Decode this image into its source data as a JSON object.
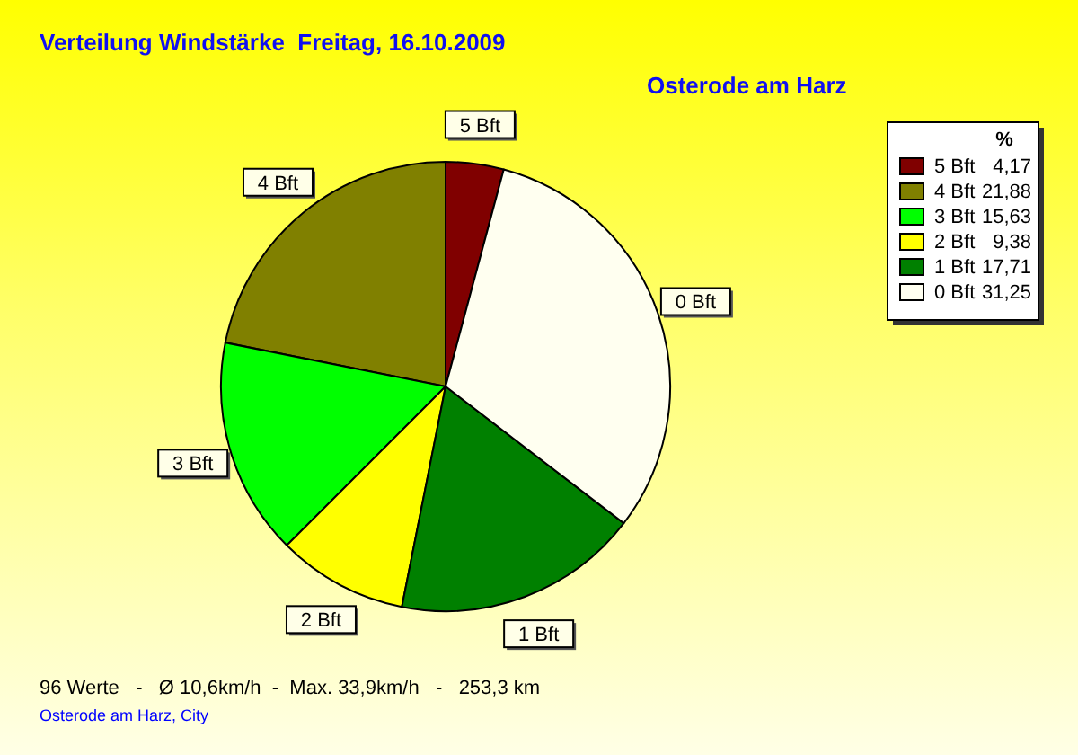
{
  "chart_data": {
    "type": "pie",
    "title": "Verteilung Windstärke  Freitag, 16.10.2009",
    "subtitle": "Osterode am Harz",
    "legend_title": "%",
    "categories": [
      "5 Bft",
      "4 Bft",
      "3 Bft",
      "2 Bft",
      "1 Bft",
      "0 Bft"
    ],
    "values": [
      4.17,
      21.88,
      15.63,
      9.38,
      17.71,
      31.25
    ],
    "value_labels": [
      "4,17",
      "21,88",
      "15,63",
      "9,38",
      "17,71",
      "31,25"
    ],
    "colors": [
      "#800000",
      "#808000",
      "#00ff00",
      "#ffff00",
      "#008000",
      "#fffff0"
    ],
    "legend": "top right",
    "annotations": [
      "96 Werte   -   Ø 10,6km/h  -  Max. 33,9km/h   -   253,3 km",
      "Osterode am Harz, City"
    ]
  }
}
